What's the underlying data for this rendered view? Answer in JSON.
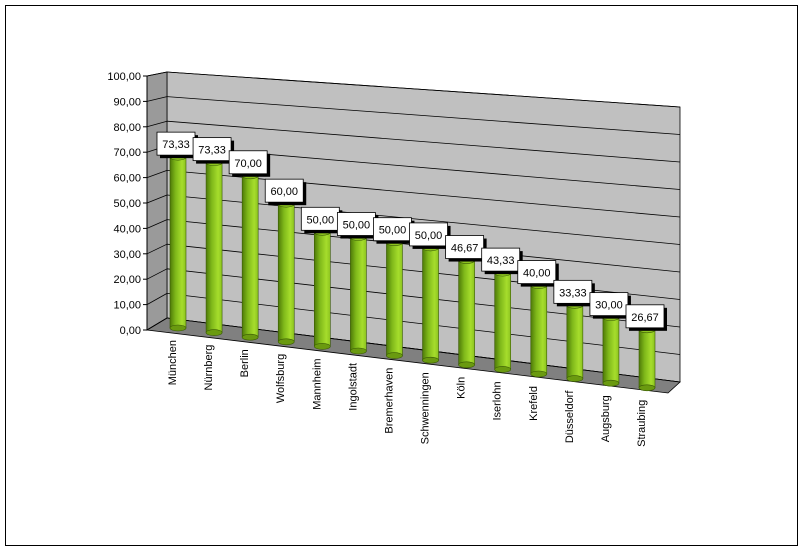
{
  "chart_data": {
    "type": "bar3d",
    "categories": [
      "München",
      "Nürnberg",
      "Berlin",
      "Wolfsburg",
      "Mannheim",
      "Ingolstadt",
      "Bremerhaven",
      "Schwenningen",
      "Köln",
      "Iserlohn",
      "Krefeld",
      "Düsseldorf",
      "Augsburg",
      "Straubing"
    ],
    "values": [
      73.33,
      73.33,
      70,
      60,
      50,
      50,
      50,
      50,
      46.67,
      43.33,
      40,
      33.33,
      30,
      26.67
    ],
    "value_labels": [
      "73,33",
      "73,33",
      "70,00",
      "60,00",
      "50,00",
      "50,00",
      "50,00",
      "50,00",
      "46,67",
      "43,33",
      "40,00",
      "33,33",
      "30,00",
      "26,67"
    ],
    "color": "#8cc320",
    "ylim": [
      0,
      100
    ],
    "yticks": [
      {
        "value": 0,
        "label": "0,00"
      },
      {
        "value": 10,
        "label": "10,00"
      },
      {
        "value": 20,
        "label": "20,00"
      },
      {
        "value": 30,
        "label": "30,00"
      },
      {
        "value": 40,
        "label": "40,00"
      },
      {
        "value": 50,
        "label": "50,00"
      },
      {
        "value": 60,
        "label": "60,00"
      },
      {
        "value": 70,
        "label": "70,00"
      },
      {
        "value": 80,
        "label": "80,00"
      },
      {
        "value": 90,
        "label": "90,00"
      },
      {
        "value": 100,
        "label": "100,00"
      }
    ],
    "grid": true
  }
}
